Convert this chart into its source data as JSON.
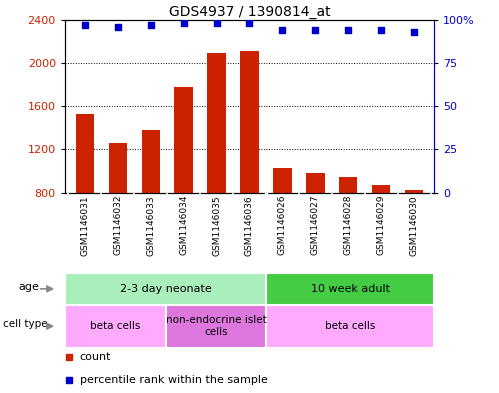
{
  "title": "GDS4937 / 1390814_at",
  "samples": [
    "GSM1146031",
    "GSM1146032",
    "GSM1146033",
    "GSM1146034",
    "GSM1146035",
    "GSM1146036",
    "GSM1146026",
    "GSM1146027",
    "GSM1146028",
    "GSM1146029",
    "GSM1146030"
  ],
  "counts": [
    1530,
    1260,
    1380,
    1780,
    2090,
    2110,
    1030,
    980,
    940,
    870,
    820
  ],
  "percentiles": [
    97,
    96,
    97,
    98,
    98,
    98,
    94,
    94,
    94,
    94,
    93
  ],
  "ylim_left": [
    800,
    2400
  ],
  "ylim_right": [
    0,
    100
  ],
  "yticks_left": [
    800,
    1200,
    1600,
    2000,
    2400
  ],
  "yticks_right": [
    0,
    25,
    50,
    75,
    100
  ],
  "bar_color": "#cc2200",
  "dot_color": "#0000cc",
  "bg_color": "#ffffff",
  "age_groups": [
    {
      "label": "2-3 day neonate",
      "start": 0,
      "end": 6,
      "color": "#aaeebb"
    },
    {
      "label": "10 week adult",
      "start": 6,
      "end": 11,
      "color": "#44cc44"
    }
  ],
  "cell_type_groups": [
    {
      "label": "beta cells",
      "start": 0,
      "end": 3,
      "color": "#ffaaff"
    },
    {
      "label": "non-endocrine islet\ncells",
      "start": 3,
      "end": 6,
      "color": "#dd77dd"
    },
    {
      "label": "beta cells",
      "start": 6,
      "end": 11,
      "color": "#ffaaff"
    }
  ],
  "tick_label_bg": "#bbbbbb",
  "group_divider": 5.5,
  "n_samples": 11,
  "bar_width": 0.55,
  "dot_size": 20
}
